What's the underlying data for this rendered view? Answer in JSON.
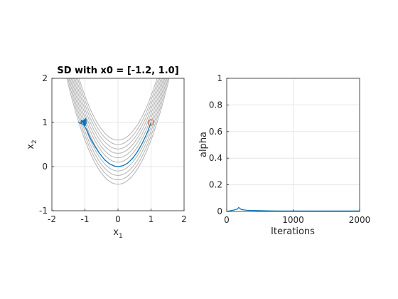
{
  "chart_data": [
    {
      "type": "line",
      "title": "SD with x0 = [-1.2, 1.0]",
      "xlabel_base": "x",
      "xlabel_sub": "1",
      "ylabel_base": "x",
      "ylabel_sub": "2",
      "xlim": [
        -2,
        2
      ],
      "ylim": [
        -1,
        2
      ],
      "xticks": [
        "-2",
        "-1",
        "0",
        "1",
        "2"
      ],
      "yticks": [
        "-1",
        "0",
        "1",
        "2"
      ],
      "grid": true,
      "contour_color": "#b3b3b3",
      "contour_levels": [
        0.6,
        0.5,
        0.4,
        0.3,
        0.2,
        0.1,
        0.0,
        -0.1,
        -0.2,
        -0.3,
        -0.4
      ],
      "start": [
        -1.2,
        1.0
      ],
      "end": [
        1.0,
        1.0
      ],
      "path_color": "#0072BD",
      "marker_color": "#D95319",
      "series": [
        {
          "x": [
            -1.2,
            -1.05,
            -0.95,
            -0.85,
            -0.7,
            -0.55,
            -0.4,
            -0.25,
            -0.1,
            0.0,
            0.15,
            0.3,
            0.45,
            0.6,
            0.75,
            0.9,
            1.0
          ],
          "y": [
            1.0,
            0.96,
            0.84,
            0.66,
            0.46,
            0.29,
            0.15,
            0.06,
            0.01,
            0.0,
            0.02,
            0.08,
            0.19,
            0.35,
            0.55,
            0.79,
            1.0
          ]
        }
      ]
    },
    {
      "type": "line",
      "title": "",
      "xlabel": "Iterations",
      "ylabel": "alpha",
      "xlim": [
        0,
        2000
      ],
      "ylim": [
        0,
        1
      ],
      "xticks": [
        "0",
        "1000",
        "2000"
      ],
      "yticks": [
        "0",
        "0.2",
        "0.4",
        "0.6",
        "0.8",
        "1"
      ],
      "grid": true,
      "series_color": "#0072BD",
      "series": [
        {
          "x": [
            0,
            40,
            80,
            120,
            160,
            180,
            200,
            220,
            260,
            300,
            400,
            500,
            600,
            800,
            1000,
            1200,
            1400,
            1600,
            1800,
            2000
          ],
          "y": [
            0.0,
            0.004,
            0.008,
            0.012,
            0.018,
            0.03,
            0.022,
            0.014,
            0.012,
            0.009,
            0.007,
            0.006,
            0.005,
            0.004,
            0.004,
            0.004,
            0.003,
            0.003,
            0.003,
            0.003
          ]
        }
      ]
    }
  ]
}
